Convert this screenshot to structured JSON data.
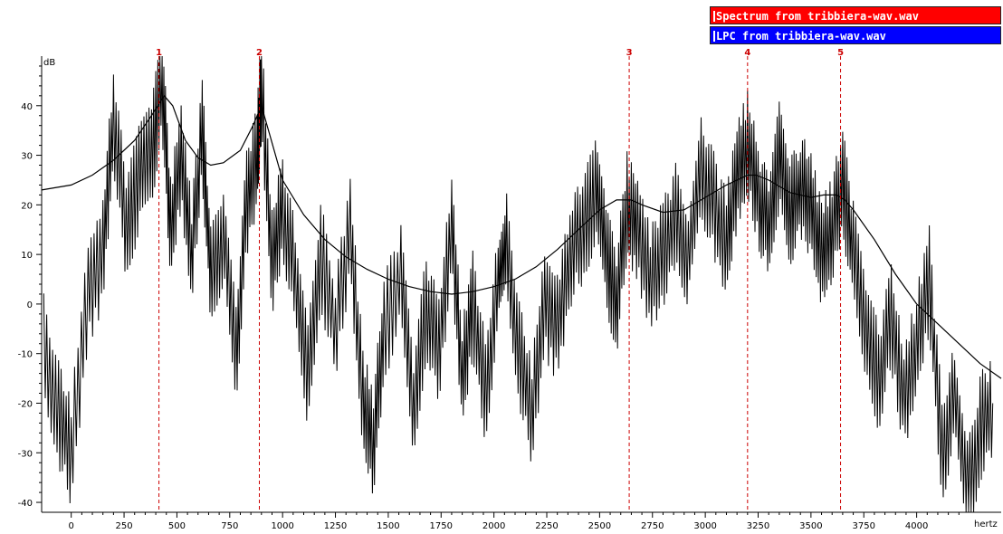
{
  "chart_data": {
    "type": "line",
    "title": "",
    "xlabel": "hertz",
    "ylabel": "dB",
    "xlim": [
      -140,
      4400
    ],
    "ylim": [
      -42,
      50
    ],
    "grid": false,
    "x_ticks": [
      0,
      250,
      500,
      750,
      1000,
      1250,
      1500,
      1750,
      2000,
      2250,
      2500,
      2750,
      3000,
      3250,
      3500,
      3750,
      4000
    ],
    "x_tick_labels": [
      "0",
      "250",
      "500",
      "750",
      "1000",
      "1250",
      "1500",
      "1750",
      "2000",
      "2250",
      "2500",
      "2750",
      "3000",
      "3250",
      "3500",
      "3750",
      "4000"
    ],
    "y_ticks": [
      -40,
      -30,
      -20,
      -10,
      0,
      10,
      20,
      30,
      40
    ],
    "y_tick_labels": [
      "-40",
      "-30",
      "-20",
      "-10",
      "0",
      "10",
      "20",
      "30",
      "40"
    ],
    "legend_position": "top-right",
    "legend": [
      {
        "label": "Spectrum from tribbiera-wav.wav",
        "color": "#ff0000"
      },
      {
        "label": "LPC from tribbiera-wav.wav",
        "color": "#0000ff"
      }
    ],
    "series": [
      {
        "name": "Spectrum from tribbiera-wav.wav",
        "color": "#000000",
        "x": [
          -130,
          -60,
          0,
          80,
          150,
          200,
          260,
          320,
          380,
          430,
          470,
          520,
          570,
          620,
          660,
          720,
          780,
          830,
          880,
          900,
          950,
          1000,
          1060,
          1120,
          1180,
          1250,
          1320,
          1380,
          1430,
          1480,
          1560,
          1620,
          1680,
          1740,
          1800,
          1850,
          1900,
          1960,
          2020,
          2060,
          2120,
          2180,
          2240,
          2300,
          2360,
          2420,
          2480,
          2530,
          2580,
          2630,
          2680,
          2740,
          2800,
          2860,
          2920,
          2980,
          3040,
          3100,
          3150,
          3200,
          3250,
          3300,
          3350,
          3400,
          3450,
          3500,
          3550,
          3600,
          3650,
          3700,
          3760,
          3820,
          3880,
          3940,
          4000,
          4060,
          4120,
          4180,
          4240,
          4300,
          4360
        ],
        "y": [
          -8,
          -22,
          -30,
          2,
          10,
          38,
          15,
          25,
          30,
          45,
          15,
          30,
          10,
          35,
          5,
          15,
          -10,
          20,
          30,
          44,
          8,
          20,
          5,
          -15,
          10,
          -5,
          15,
          -20,
          -28,
          -5,
          5,
          -22,
          0,
          -10,
          16,
          -15,
          0,
          -18,
          5,
          12,
          -10,
          -22,
          0,
          -5,
          10,
          15,
          22,
          10,
          0,
          20,
          15,
          5,
          10,
          18,
          10,
          28,
          20,
          12,
          26,
          32,
          22,
          15,
          30,
          18,
          24,
          20,
          10,
          15,
          25,
          10,
          -5,
          -15,
          -3,
          -20,
          -8,
          5,
          -30,
          -18,
          -38,
          -25,
          -20
        ]
      },
      {
        "name": "LPC from tribbiera-wav.wav",
        "color": "#000000",
        "x": [
          -140,
          0,
          100,
          200,
          300,
          380,
          440,
          480,
          540,
          600,
          660,
          720,
          800,
          860,
          900,
          940,
          1000,
          1100,
          1200,
          1300,
          1400,
          1500,
          1600,
          1700,
          1800,
          1900,
          2000,
          2100,
          2200,
          2300,
          2400,
          2500,
          2580,
          2650,
          2700,
          2800,
          2900,
          3000,
          3100,
          3200,
          3240,
          3300,
          3400,
          3500,
          3560,
          3620,
          3660,
          3700,
          3800,
          3900,
          4000,
          4100,
          4200,
          4300,
          4400
        ],
        "y": [
          23,
          24,
          26,
          29,
          33,
          38,
          42,
          40,
          33,
          29.5,
          28,
          28.5,
          31,
          36,
          40,
          34,
          25,
          18,
          13,
          9.5,
          7,
          5,
          3.5,
          2.5,
          2,
          2.5,
          3.5,
          5,
          7.5,
          11,
          15,
          19,
          21,
          21,
          20,
          18.5,
          19,
          21.5,
          24,
          26,
          26,
          25,
          22.5,
          21.5,
          22,
          22,
          21,
          19,
          13,
          6,
          0,
          -4,
          -8,
          -12,
          -15
        ]
      }
    ],
    "annotations": [
      {
        "label": "1",
        "x": 415
      },
      {
        "label": "2",
        "x": 890
      },
      {
        "label": "3",
        "x": 2640
      },
      {
        "label": "4",
        "x": 3200
      },
      {
        "label": "5",
        "x": 3640
      }
    ]
  }
}
